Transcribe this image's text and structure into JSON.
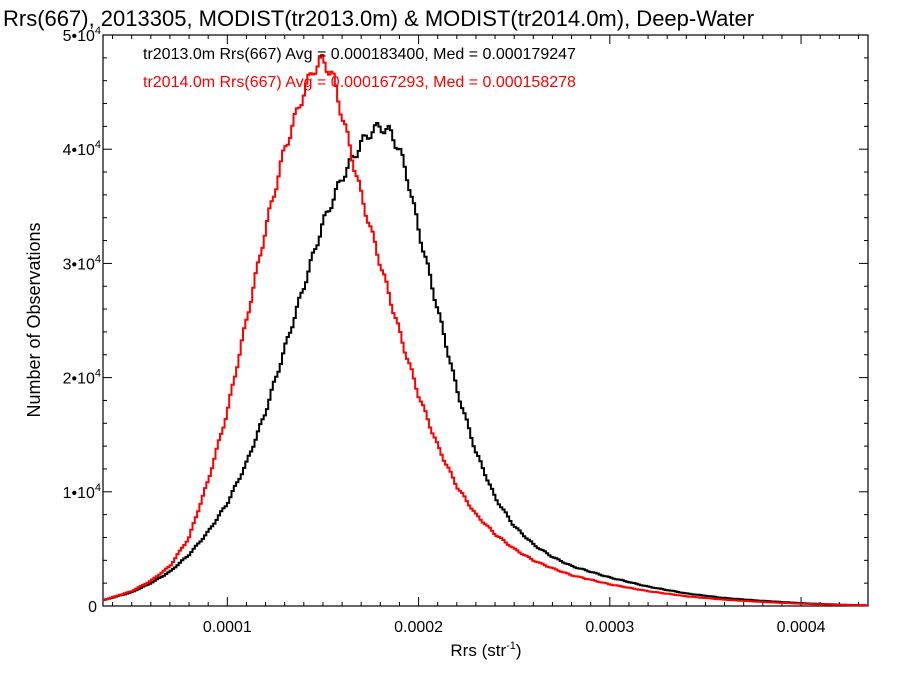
{
  "chart_data": {
    "type": "line",
    "title": "Rrs(667), 2013305, MODIST(tr2013.0m) & MODIST(tr2014.0m), Deep-Water",
    "xlabel_base": "Rrs (str",
    "xlabel_sup": "-1",
    "xlabel_close": ")",
    "ylabel": "Number of Observations",
    "xlim": [
      3.5e-05,
      0.000435
    ],
    "ylim": [
      0,
      50000
    ],
    "x_ticks": [
      {
        "value": 0.0001,
        "label": "0.0001"
      },
      {
        "value": 0.0002,
        "label": "0.0002"
      },
      {
        "value": 0.0003,
        "label": "0.0003"
      },
      {
        "value": 0.0004,
        "label": "0.0004"
      }
    ],
    "y_ticks": [
      {
        "value": 0,
        "base": "0",
        "exp": ""
      },
      {
        "value": 10000,
        "base": "1•10",
        "exp": "4"
      },
      {
        "value": 20000,
        "base": "2•10",
        "exp": "4"
      },
      {
        "value": 30000,
        "base": "3•10",
        "exp": "4"
      },
      {
        "value": 40000,
        "base": "4•10",
        "exp": "4"
      },
      {
        "value": 50000,
        "base": "5•10",
        "exp": "4"
      }
    ],
    "series": [
      {
        "legend": "tr2013.0m Rrs(667) Avg = 0.000183400, Med = 0.000179247",
        "color": "#000000",
        "x": [
          3.5e-05,
          5e-05,
          6e-05,
          7e-05,
          8e-05,
          9e-05,
          0.0001,
          0.00011,
          0.00012,
          0.00013,
          0.00014,
          0.00015,
          0.00016,
          0.00017,
          0.000175,
          0.00018,
          0.000185,
          0.00019,
          0.000195,
          0.0002,
          0.00021,
          0.00022,
          0.00023,
          0.00024,
          0.00025,
          0.00026,
          0.00027,
          0.00028,
          0.0003,
          0.00032,
          0.00034,
          0.00036,
          0.00038,
          0.0004,
          0.00042,
          0.000435
        ],
        "y": [
          500,
          1200,
          2000,
          3000,
          4500,
          6500,
          9000,
          12500,
          17000,
          22500,
          28000,
          33500,
          37500,
          40500,
          41500,
          42000,
          41500,
          40000,
          37000,
          33000,
          26000,
          19000,
          13500,
          9500,
          7000,
          5400,
          4300,
          3500,
          2500,
          1700,
          1100,
          700,
          450,
          250,
          120,
          50
        ]
      },
      {
        "legend": "tr2014.0m Rrs(667) Avg = 0.000167293, Med = 0.000158278",
        "color": "#ff0000",
        "x": [
          3.5e-05,
          5e-05,
          6e-05,
          7e-05,
          8e-05,
          9e-05,
          0.0001,
          0.00011,
          0.00012,
          0.00013,
          0.00014,
          0.000145,
          0.00015,
          0.000155,
          0.00016,
          0.00017,
          0.00018,
          0.00019,
          0.0002,
          0.00021,
          0.00022,
          0.00023,
          0.00024,
          0.00025,
          0.00026,
          0.00027,
          0.00028,
          0.0003,
          0.00032,
          0.00034,
          0.00036,
          0.00038,
          0.0004,
          0.00042,
          0.000435
        ],
        "y": [
          500,
          1300,
          2200,
          3500,
          6000,
          11000,
          17000,
          25000,
          33000,
          40000,
          45000,
          47000,
          47800,
          46500,
          43000,
          36000,
          30000,
          24000,
          18500,
          14000,
          10500,
          8000,
          6300,
          5000,
          4000,
          3300,
          2700,
          1900,
          1300,
          850,
          550,
          350,
          200,
          100,
          50
        ]
      }
    ]
  }
}
